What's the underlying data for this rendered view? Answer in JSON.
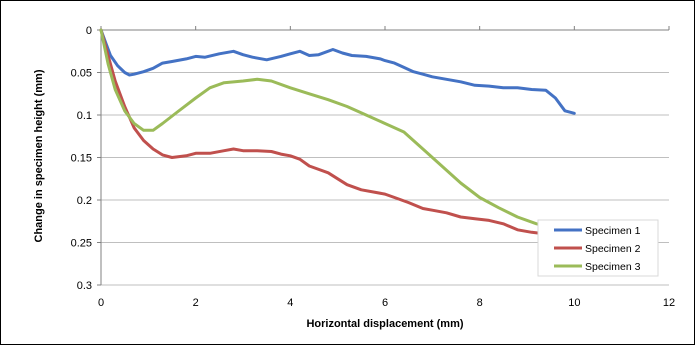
{
  "chart_data": {
    "type": "line",
    "title": "",
    "xlabel": "Horizontal displacement (mm)",
    "ylabel": "Change in specimen height (mm)",
    "xlim": [
      0,
      12
    ],
    "ylim": [
      0,
      0.3
    ],
    "y_inverted": true,
    "x_ticks": [
      0,
      2,
      4,
      6,
      8,
      10,
      12
    ],
    "y_ticks": [
      0,
      0.05,
      0.1,
      0.15,
      0.2,
      0.25,
      0.3
    ],
    "x_tick_labels": [
      "0",
      "2",
      "4",
      "6",
      "8",
      "10",
      "12"
    ],
    "y_tick_labels": [
      "0",
      "0.05",
      "0.1",
      "0.15",
      "0.2",
      "0.25",
      "0.3"
    ],
    "grid": "horizontal",
    "legend_position": "bottom-right",
    "series": [
      {
        "name": "Specimen 1",
        "color": "#4472C4",
        "x": [
          0,
          0.1,
          0.2,
          0.35,
          0.5,
          0.6,
          0.7,
          0.9,
          1.1,
          1.3,
          1.5,
          1.8,
          2.0,
          2.2,
          2.5,
          2.8,
          3.0,
          3.2,
          3.5,
          3.8,
          4.0,
          4.2,
          4.4,
          4.6,
          4.9,
          5.1,
          5.3,
          5.6,
          5.9,
          6.0,
          6.2,
          6.4,
          6.6,
          6.8,
          7.0,
          7.3,
          7.6,
          7.9,
          8.2,
          8.5,
          8.8,
          9.1,
          9.4,
          9.6,
          9.8,
          10.0
        ],
        "y": [
          0,
          0.015,
          0.03,
          0.042,
          0.05,
          0.053,
          0.052,
          0.049,
          0.045,
          0.039,
          0.037,
          0.034,
          0.031,
          0.032,
          0.028,
          0.025,
          0.029,
          0.032,
          0.035,
          0.031,
          0.028,
          0.025,
          0.03,
          0.029,
          0.023,
          0.027,
          0.03,
          0.031,
          0.034,
          0.036,
          0.039,
          0.044,
          0.049,
          0.052,
          0.055,
          0.058,
          0.061,
          0.065,
          0.066,
          0.068,
          0.068,
          0.07,
          0.071,
          0.08,
          0.095,
          0.098
        ]
      },
      {
        "name": "Specimen 2",
        "color": "#C0504D",
        "x": [
          0,
          0.15,
          0.3,
          0.5,
          0.7,
          0.9,
          1.1,
          1.3,
          1.5,
          1.8,
          2.0,
          2.3,
          2.6,
          2.8,
          3.0,
          3.3,
          3.6,
          3.8,
          4.0,
          4.2,
          4.4,
          4.6,
          4.8,
          5.0,
          5.2,
          5.5,
          5.8,
          6.0,
          6.2,
          6.5,
          6.8,
          7.0,
          7.3,
          7.6,
          7.9,
          8.2,
          8.5,
          8.8,
          9.1,
          9.4,
          9.7,
          10.0
        ],
        "y": [
          0,
          0.03,
          0.06,
          0.09,
          0.115,
          0.13,
          0.14,
          0.147,
          0.15,
          0.148,
          0.145,
          0.145,
          0.142,
          0.14,
          0.142,
          0.142,
          0.143,
          0.146,
          0.148,
          0.152,
          0.16,
          0.164,
          0.168,
          0.175,
          0.182,
          0.188,
          0.191,
          0.193,
          0.197,
          0.203,
          0.21,
          0.212,
          0.215,
          0.22,
          0.222,
          0.224,
          0.228,
          0.235,
          0.238,
          0.24,
          0.245,
          0.253
        ]
      },
      {
        "name": "Specimen 3",
        "color": "#9BBB59",
        "x": [
          0,
          0.15,
          0.3,
          0.5,
          0.7,
          0.9,
          1.1,
          1.3,
          1.6,
          2.0,
          2.3,
          2.6,
          3.0,
          3.3,
          3.6,
          4.0,
          4.4,
          4.8,
          5.2,
          5.6,
          6.0,
          6.4,
          6.8,
          7.2,
          7.6,
          8.0,
          8.4,
          8.8,
          9.2,
          9.6,
          10.0
        ],
        "y": [
          0,
          0.04,
          0.07,
          0.095,
          0.11,
          0.118,
          0.118,
          0.11,
          0.097,
          0.08,
          0.068,
          0.062,
          0.06,
          0.058,
          0.06,
          0.068,
          0.075,
          0.082,
          0.09,
          0.1,
          0.11,
          0.12,
          0.14,
          0.16,
          0.18,
          0.197,
          0.209,
          0.22,
          0.228,
          0.233,
          0.235
        ]
      }
    ]
  }
}
